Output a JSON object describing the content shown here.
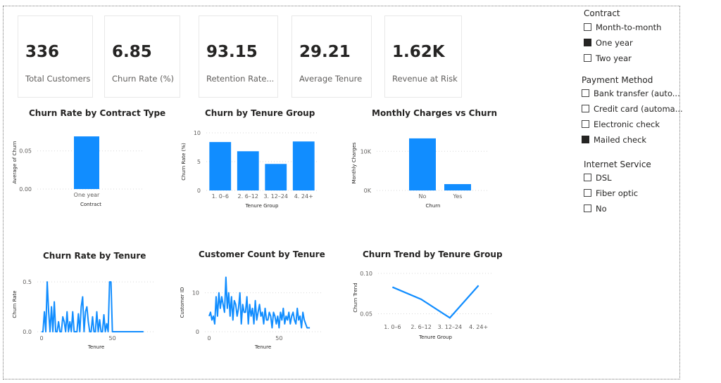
{
  "cards": [
    {
      "value": "336",
      "label": "Total Customers"
    },
    {
      "value": "6.85",
      "label": "Churn Rate (%)"
    },
    {
      "value": "93.15",
      "label": "Retention Rate..."
    },
    {
      "value": "29.21",
      "label": "Average Tenure"
    },
    {
      "value": "1.62K",
      "label": "Revenue at Risk"
    }
  ],
  "colors": {
    "accent": "#118DFF",
    "grid": "#d9d9d9",
    "axis": "#605e5c",
    "check": "#252423"
  },
  "chart_data": [
    {
      "type": "bar",
      "title": "Churn Rate by Contract Type",
      "categories": [
        "One year"
      ],
      "values": [
        0.069
      ],
      "xlabel": "Contract",
      "ylabel": "Average of Churn",
      "ylim": [
        0,
        0.07
      ],
      "yticks": [
        "0.00",
        "0.05"
      ],
      "grid": true
    },
    {
      "type": "bar",
      "title": "Churn by Tenure Group",
      "categories": [
        "1. 0–6",
        "2. 6–12",
        "3. 12–24",
        "4. 24+"
      ],
      "values": [
        8.4,
        6.8,
        4.6,
        8.5
      ],
      "xlabel": "Tenure Group",
      "ylabel": "Churn Rate (%)",
      "ylim": [
        0,
        10
      ],
      "yticks": [
        "0",
        "5",
        "10"
      ],
      "grid": true
    },
    {
      "type": "bar",
      "title": "Monthly Charges vs Churn",
      "categories": [
        "No",
        "Yes"
      ],
      "values": [
        13300,
        1620
      ],
      "xlabel": "Churn",
      "ylabel": "Monthly Charges",
      "ylim": [
        0,
        14000
      ],
      "yticks": [
        "0K",
        "10K"
      ],
      "grid": true
    },
    {
      "type": "line",
      "title": "Churn Rate by Tenure",
      "xlabel": "Tenure",
      "ylabel": "Churn Rate",
      "xlim": [
        0,
        80
      ],
      "ylim": [
        0,
        0.55
      ],
      "xticks": [
        "0",
        "50"
      ],
      "yticks": [
        "0.0",
        "0.5"
      ],
      "x": [
        0,
        1,
        2,
        3,
        4,
        5,
        6,
        7,
        8,
        9,
        10,
        11,
        12,
        13,
        14,
        15,
        16,
        17,
        18,
        19,
        20,
        21,
        22,
        23,
        24,
        25,
        26,
        27,
        28,
        29,
        30,
        31,
        32,
        33,
        34,
        35,
        36,
        37,
        38,
        39,
        40,
        41,
        42,
        43,
        44,
        45,
        46,
        47,
        48,
        49,
        50,
        51,
        52,
        53,
        54,
        55,
        56,
        57,
        58,
        59,
        60,
        61,
        62,
        63,
        64,
        65,
        66,
        67,
        68,
        69,
        70,
        71,
        72
      ],
      "y": [
        0,
        0,
        0.2,
        0,
        0.5,
        0.2,
        0,
        0.25,
        0,
        0.3,
        0,
        0,
        0.1,
        0,
        0,
        0.15,
        0.1,
        0,
        0.2,
        0,
        0.1,
        0,
        0.2,
        0,
        0,
        0,
        0.18,
        0,
        0.25,
        0.35,
        0,
        0.2,
        0.25,
        0.1,
        0,
        0,
        0.15,
        0,
        0,
        0.2,
        0,
        0.12,
        0,
        0,
        0.17,
        0,
        0.08,
        0,
        0.5,
        0.5,
        0,
        0,
        0,
        0,
        0,
        0,
        0,
        0,
        0,
        0,
        0,
        0,
        0,
        0,
        0,
        0,
        0,
        0,
        0,
        0,
        0,
        0,
        0
      ]
    },
    {
      "type": "line",
      "title": "Customer Count by Tenure",
      "xlabel": "Tenure",
      "ylabel": "Customer ID",
      "xlim": [
        0,
        80
      ],
      "ylim": [
        0,
        15
      ],
      "xticks": [
        "0",
        "50"
      ],
      "yticks": [
        "0",
        "10"
      ],
      "x": [
        0,
        1,
        2,
        3,
        4,
        5,
        6,
        7,
        8,
        9,
        10,
        11,
        12,
        13,
        14,
        15,
        16,
        17,
        18,
        19,
        20,
        21,
        22,
        23,
        24,
        25,
        26,
        27,
        28,
        29,
        30,
        31,
        32,
        33,
        34,
        35,
        36,
        37,
        38,
        39,
        40,
        41,
        42,
        43,
        44,
        45,
        46,
        47,
        48,
        49,
        50,
        51,
        52,
        53,
        54,
        55,
        56,
        57,
        58,
        59,
        60,
        61,
        62,
        63,
        64,
        65,
        66,
        67,
        68,
        69,
        70,
        71,
        72
      ],
      "y": [
        4,
        5,
        3,
        4,
        2,
        9,
        4,
        10,
        6,
        9,
        7,
        5,
        14,
        6,
        10,
        4,
        9,
        3,
        8,
        7,
        4,
        6,
        10,
        2,
        7,
        5,
        5,
        9,
        2,
        7,
        4,
        6,
        2,
        8,
        3,
        5,
        7,
        4,
        5,
        2,
        6,
        3,
        3,
        5,
        4,
        1,
        5,
        4,
        2,
        4,
        1,
        5,
        3,
        6,
        2,
        4,
        3,
        5,
        2,
        4,
        5,
        3,
        2,
        6,
        3,
        4,
        1,
        5,
        3,
        2,
        1,
        1,
        1
      ]
    },
    {
      "type": "line",
      "title": "Churn Trend by Tenure Group",
      "categories": [
        "1. 0–6",
        "2. 6–12",
        "3. 12–24",
        "4. 24+"
      ],
      "values": [
        0.083,
        0.068,
        0.045,
        0.085
      ],
      "xlabel": "Tenure Group",
      "ylabel": "Churn Trend",
      "ylim": [
        0.04,
        0.1
      ],
      "yticks": [
        "0.05",
        "0.10"
      ],
      "grid": true
    }
  ],
  "slicers": [
    {
      "title": "Contract",
      "options": [
        {
          "label": "Month-to-month",
          "checked": false
        },
        {
          "label": "One year",
          "checked": true
        },
        {
          "label": "Two year",
          "checked": false
        }
      ]
    },
    {
      "title": "Payment Method",
      "options": [
        {
          "label": "Bank transfer (auto...",
          "checked": false
        },
        {
          "label": "Credit card (automa...",
          "checked": false
        },
        {
          "label": "Electronic check",
          "checked": false
        },
        {
          "label": "Mailed check",
          "checked": true
        }
      ]
    },
    {
      "title": "Internet Service",
      "options": [
        {
          "label": "DSL",
          "checked": false
        },
        {
          "label": "Fiber optic",
          "checked": false
        },
        {
          "label": "No",
          "checked": false
        }
      ]
    }
  ]
}
